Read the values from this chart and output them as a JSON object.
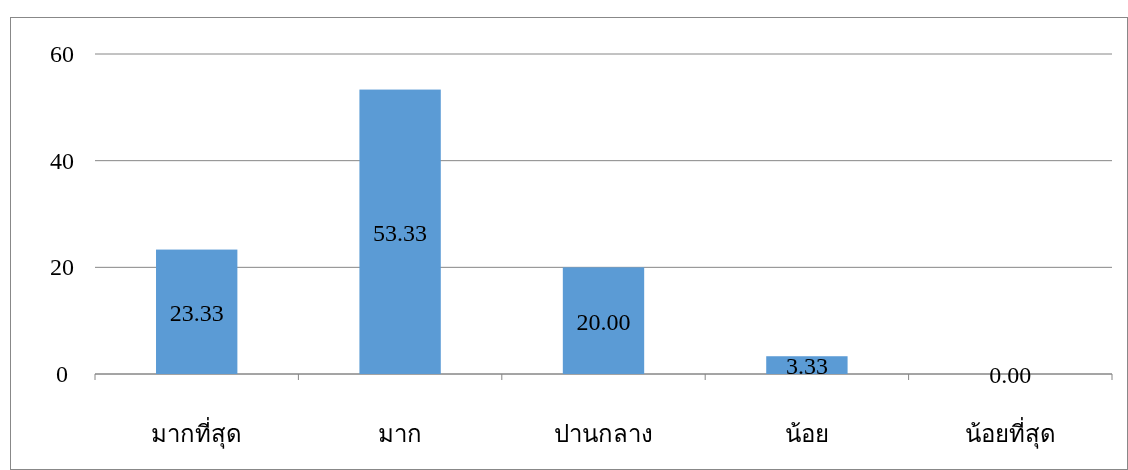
{
  "chart_data": {
    "type": "bar",
    "categories": [
      "มากที่สุด",
      "มาก",
      "ปานกลาง",
      "น้อย",
      "น้อยที่สุด"
    ],
    "values": [
      23.33,
      53.33,
      20,
      3.33,
      0
    ],
    "value_labels": [
      "23.33",
      "53.33",
      "20.00",
      "3.33",
      "0.00"
    ],
    "color": "#5b9bd5",
    "ylim": [
      0,
      60
    ],
    "yticks": [
      0,
      20,
      40,
      60
    ],
    "grid": "y"
  }
}
